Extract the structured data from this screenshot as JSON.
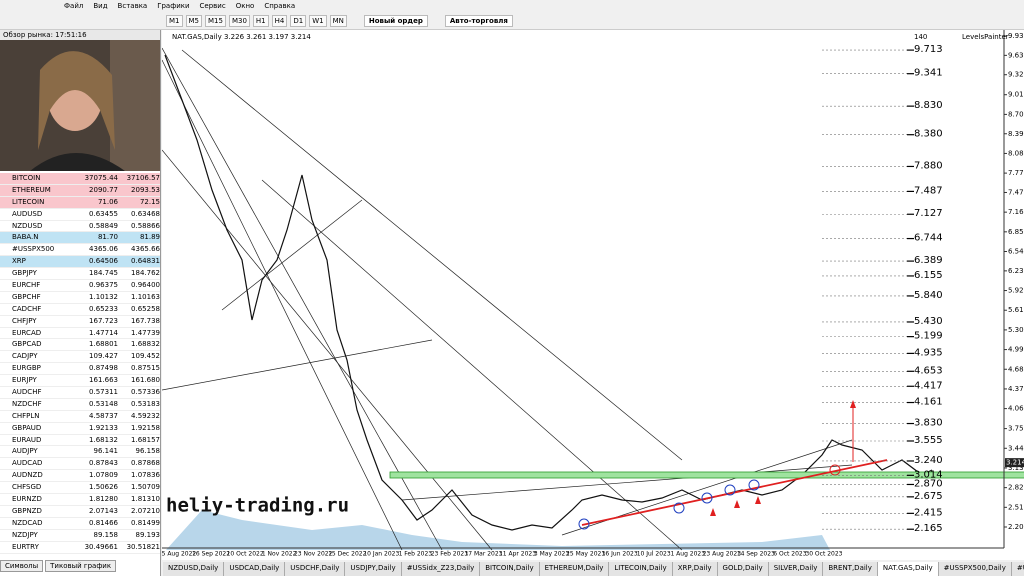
{
  "menu": [
    "Файл",
    "Вид",
    "Вставка",
    "Графики",
    "Сервис",
    "Окно",
    "Справка"
  ],
  "toolbar": {
    "timeframes": [
      "M1",
      "M5",
      "M15",
      "M30",
      "H1",
      "H4",
      "D1",
      "W1",
      "MN"
    ],
    "new_order": "Новый ордер",
    "auto_trading": "Авто-торговля"
  },
  "market_watch": {
    "title": "Обзор рынка: 17:51:16",
    "rows": [
      [
        "BITCOIN",
        "37075.44",
        "37106.57"
      ],
      [
        "ETHEREUM",
        "2090.77",
        "2093.53"
      ],
      [
        "LITECOIN",
        "71.06",
        "72.15"
      ],
      [
        "AUDUSD",
        "0.63455",
        "0.63468"
      ],
      [
        "NZDUSD",
        "0.58849",
        "0.58866"
      ],
      [
        "BABA.N",
        "81.70",
        "81.89"
      ],
      [
        "#USSPX500",
        "4365.06",
        "4365.66"
      ],
      [
        "XRP",
        "0.64506",
        "0.64831"
      ],
      [
        "GBPJPY",
        "184.745",
        "184.762"
      ],
      [
        "EURCHF",
        "0.96375",
        "0.96400"
      ],
      [
        "GBPCHF",
        "1.10132",
        "1.10163"
      ],
      [
        "CADCHF",
        "0.65233",
        "0.65258"
      ],
      [
        "CHFJPY",
        "167.723",
        "167.738"
      ],
      [
        "EURCAD",
        "1.47714",
        "1.47739"
      ],
      [
        "GBPCAD",
        "1.68801",
        "1.68832"
      ],
      [
        "CADJPY",
        "109.427",
        "109.452"
      ],
      [
        "EURGBP",
        "0.87498",
        "0.87515"
      ],
      [
        "EURJPY",
        "161.663",
        "161.680"
      ],
      [
        "AUDCHF",
        "0.57311",
        "0.57336"
      ],
      [
        "NZDCHF",
        "0.53148",
        "0.53183"
      ],
      [
        "CHFPLN",
        "4.58737",
        "4.59232"
      ],
      [
        "GBPAUD",
        "1.92133",
        "1.92158"
      ],
      [
        "EURAUD",
        "1.68132",
        "1.68157"
      ],
      [
        "AUDJPY",
        "96.141",
        "96.158"
      ],
      [
        "AUDCAD",
        "0.87843",
        "0.87868"
      ],
      [
        "AUDNZD",
        "1.07809",
        "1.07836"
      ],
      [
        "CHFSGD",
        "1.50626",
        "1.50709"
      ],
      [
        "EURNZD",
        "1.81280",
        "1.81310"
      ],
      [
        "GBPNZD",
        "2.07143",
        "2.07210"
      ],
      [
        "NZDCAD",
        "0.81466",
        "0.81499"
      ],
      [
        "NZDJPY",
        "89.158",
        "89.193"
      ],
      [
        "EURTRY",
        "30.49661",
        "30.51821"
      ]
    ],
    "tabs": [
      "Символы",
      "Тиковый график"
    ]
  },
  "chart": {
    "title": "NAT.GAS,Daily",
    "ohlc": "3.226 3.261 3.197 3.214",
    "indicator": "LevelsPainter",
    "counter": "140",
    "watermark": "heliy-trading.ru",
    "price_axis": [
      "9.935",
      "9.630",
      "9.325",
      "9.010",
      "8.700",
      "8.395",
      "8.085",
      "7.775",
      "7.470",
      "7.160",
      "6.850",
      "6.540",
      "6.235",
      "5.925",
      "5.615",
      "5.305",
      "4.995",
      "4.685",
      "4.375",
      "4.065",
      "3.750",
      "3.440",
      "3.130",
      "2.820",
      "2.510",
      "2.200"
    ],
    "current_price": "3.214",
    "levels": [
      "9.713",
      "9.341",
      "8.830",
      "8.380",
      "7.880",
      "7.487",
      "7.127",
      "6.744",
      "6.389",
      "6.155",
      "5.840",
      "5.430",
      "5.199",
      "4.935",
      "4.653",
      "4.417",
      "4.161",
      "3.830",
      "3.555",
      "3.240",
      "3.014",
      "2.870",
      "2.675",
      "2.415",
      "2.165"
    ],
    "dates": [
      "25 Aug 2022",
      "16 Sep 2022",
      "10 Oct 2022",
      "1 Nov 2022",
      "23 Nov 2022",
      "15 Dec 2022",
      "10 Jan 2023",
      "1 Feb 2023",
      "23 Feb 2023",
      "17 Mar 2023",
      "11 Apr 2023",
      "3 May 2023",
      "25 May 2023",
      "16 Jun 2023",
      "10 Jul 2023",
      "1 Aug 2023",
      "23 Aug 2023",
      "14 Sep 2023",
      "6 Oct 2023",
      "30 Oct 2023"
    ]
  },
  "tabs": [
    "NZDUSD,Daily",
    "USDCAD,Daily",
    "USDCHF,Daily",
    "USDJPY,Daily",
    "#USSidx_Z23,Daily",
    "BITCOIN,Daily",
    "ETHEREUM,Daily",
    "LITECOIN,Daily",
    "XRP,Daily",
    "GOLD,Daily",
    "SILVER,Daily",
    "BRENT,Daily",
    "NAT.GAS,Daily",
    "#USSPX500,Daily",
    "#USNDAQ100,Daily",
    "BABA.N,Daily"
  ]
}
